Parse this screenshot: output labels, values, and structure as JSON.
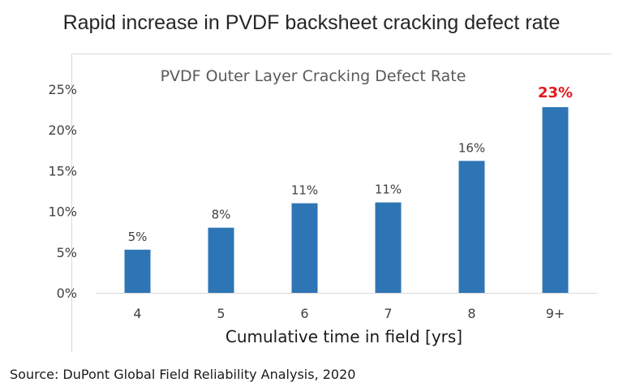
{
  "slide": {
    "title": "Rapid increase in PVDF backsheet cracking defect rate",
    "source": "Source: DuPont Global Field Reliability Analysis, 2020"
  },
  "colors": {
    "bar": "#2e75b6",
    "highlight_label": "#e3191c",
    "axis": "#d9d9d9"
  },
  "chart_data": {
    "type": "bar",
    "title": "PVDF Outer Layer Cracking Defect Rate",
    "xlabel": "Cumulative time in field [yrs]",
    "ylabel": "",
    "categories": [
      "4",
      "5",
      "6",
      "7",
      "8",
      "9+"
    ],
    "values": [
      5.3,
      8.0,
      11.0,
      11.1,
      16.2,
      22.8
    ],
    "data_labels": [
      "5%",
      "8%",
      "11%",
      "11%",
      "16%",
      "23%"
    ],
    "highlight_index": 5,
    "ylim": [
      0,
      25
    ],
    "yticks": [
      0,
      5,
      10,
      15,
      20,
      25
    ],
    "ytick_labels": [
      "0%",
      "5%",
      "10%",
      "15%",
      "20%",
      "25%"
    ],
    "grid": false,
    "legend": "none"
  }
}
